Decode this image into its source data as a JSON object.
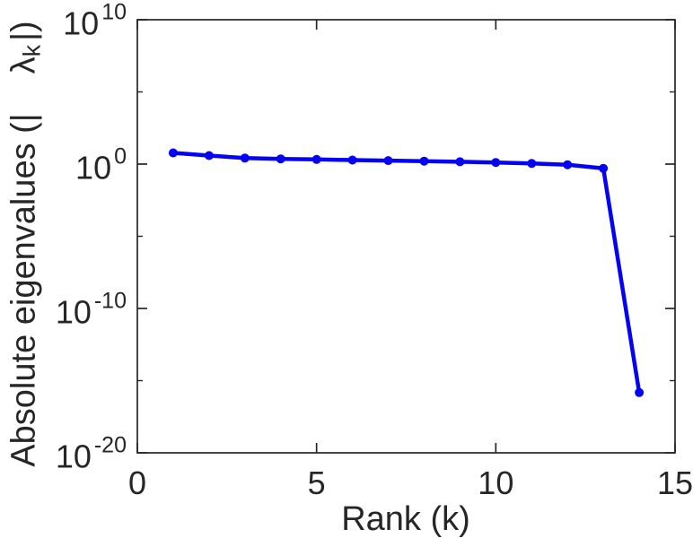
{
  "figure": {
    "background": "#ffffff"
  },
  "chart_data": {
    "type": "line",
    "title": "",
    "xlabel": "Rank (k)",
    "ylabel_text": "Absolute eigenvalues (| λ_k |)",
    "ylabel": {
      "prefix": "Absolute eigenvalues (|",
      "lambda": "λ",
      "subscript": "k",
      "suffix": "|)"
    },
    "series": [
      {
        "name": "absolute-eigenvalues",
        "x": [
          1,
          2,
          3,
          4,
          5,
          6,
          7,
          8,
          9,
          10,
          11,
          12,
          13,
          14
        ],
        "y": [
          6.0,
          3.9,
          2.6,
          2.3,
          2.1,
          1.9,
          1.75,
          1.6,
          1.45,
          1.3,
          1.1,
          0.9,
          0.5,
          1.5e-16
        ],
        "color": "#0404f2",
        "marker": "filled-circle"
      }
    ],
    "x_axis": {
      "label": "Rank (k)",
      "min": 0,
      "max": 15,
      "ticks": [
        0,
        5,
        10,
        15
      ],
      "tick_labels": [
        "0",
        "5",
        "10",
        "15"
      ],
      "scale": "linear"
    },
    "y_axis": {
      "scale": "log10",
      "min": 1e-20,
      "max": 10000000000.0,
      "min_exp": -20,
      "max_exp": 10,
      "major_tick_exps": [
        10,
        0,
        -10,
        -20
      ],
      "minor_tick_exps": [
        5,
        -5,
        -15
      ],
      "tick_labels": [
        {
          "base": "10",
          "exp": "10",
          "exp_value": 10
        },
        {
          "base": "10",
          "exp": "0",
          "exp_value": 0
        },
        {
          "base": "10",
          "exp": "-10",
          "exp_value": -10
        },
        {
          "base": "10",
          "exp": "-20",
          "exp_value": -20
        }
      ]
    },
    "grid": false,
    "legend": "none",
    "box": "on",
    "tick_direction": "in",
    "axis_color": "#262626",
    "text_color": "#262626"
  }
}
